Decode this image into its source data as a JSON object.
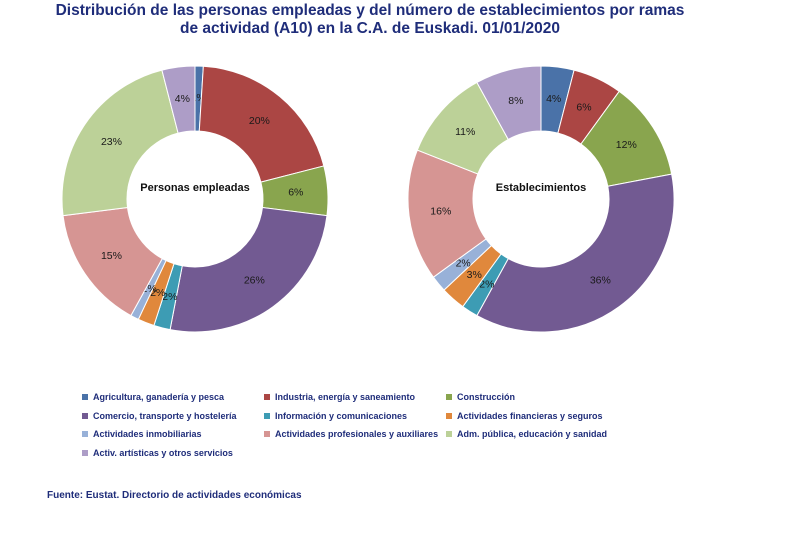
{
  "title": {
    "line1": "Distribución de las personas empleadas y del número de establecimientos por ramas",
    "line2": "de actividad (A10) en la C.A. de Euskadi. 01/01/2020"
  },
  "source": "Fuente: Eustat. Directorio de actividades económicas",
  "chart_data": [
    {
      "type": "pie",
      "variant": "doughnut",
      "title": "Personas empleadas",
      "categories": [
        "Agricultura, ganadería y pesca",
        "Industria, energía y saneamiento",
        "Construcción",
        "Comercio, transporte y hostelería",
        "Información y comunicaciones",
        "Actividades financieras y seguros",
        "Actividades inmobiliarias",
        "Actividades profesionales y auxiliares",
        "Adm. pública, educación y sanidad",
        "Activ. artísticas y otros servicios"
      ],
      "values": [
        1,
        20,
        6,
        26,
        2,
        2,
        1,
        15,
        23,
        4
      ],
      "labels": [
        "1%",
        "20%",
        "6%",
        "26%",
        "2%",
        "2%",
        "1%",
        "15%",
        "23%",
        "4%"
      ]
    },
    {
      "type": "pie",
      "variant": "doughnut",
      "title": "Establecimientos",
      "categories": [
        "Agricultura, ganadería y pesca",
        "Industria, energía y saneamiento",
        "Construcción",
        "Comercio, transporte y hostelería",
        "Información y comunicaciones",
        "Actividades financieras y seguros",
        "Actividades inmobiliarias",
        "Actividades profesionales y auxiliares",
        "Adm. pública, educación y sanidad",
        "Activ. artísticas y otros servicios"
      ],
      "values": [
        4,
        6,
        12,
        36,
        2,
        3,
        2,
        16,
        11,
        8
      ],
      "labels": [
        "4%",
        "6%",
        "12%",
        "36%",
        "2%",
        "3%",
        "2%",
        "16%",
        "11%",
        "8%"
      ]
    }
  ],
  "legend": [
    {
      "label": "Agricultura, ganadería y pesca",
      "color": "#4a72a8"
    },
    {
      "label": "Industria, energía y saneamiento",
      "color": "#ab4644"
    },
    {
      "label": "Construcción",
      "color": "#89a54e"
    },
    {
      "label": "Comercio, transporte y hostelería",
      "color": "#725a92"
    },
    {
      "label": "Información y comunicaciones",
      "color": "#3d9cb4"
    },
    {
      "label": "Actividades financieras y seguros",
      "color": "#e0883c"
    },
    {
      "label": "Actividades inmobiliarias",
      "color": "#98b1d8"
    },
    {
      "label": "Actividades profesionales y auxiliares",
      "color": "#d69593"
    },
    {
      "label": "Adm. pública, educación y sanidad",
      "color": "#bcd198"
    },
    {
      "label": "Activ. artísticas y otros servicios",
      "color": "#ad9dc7"
    }
  ]
}
